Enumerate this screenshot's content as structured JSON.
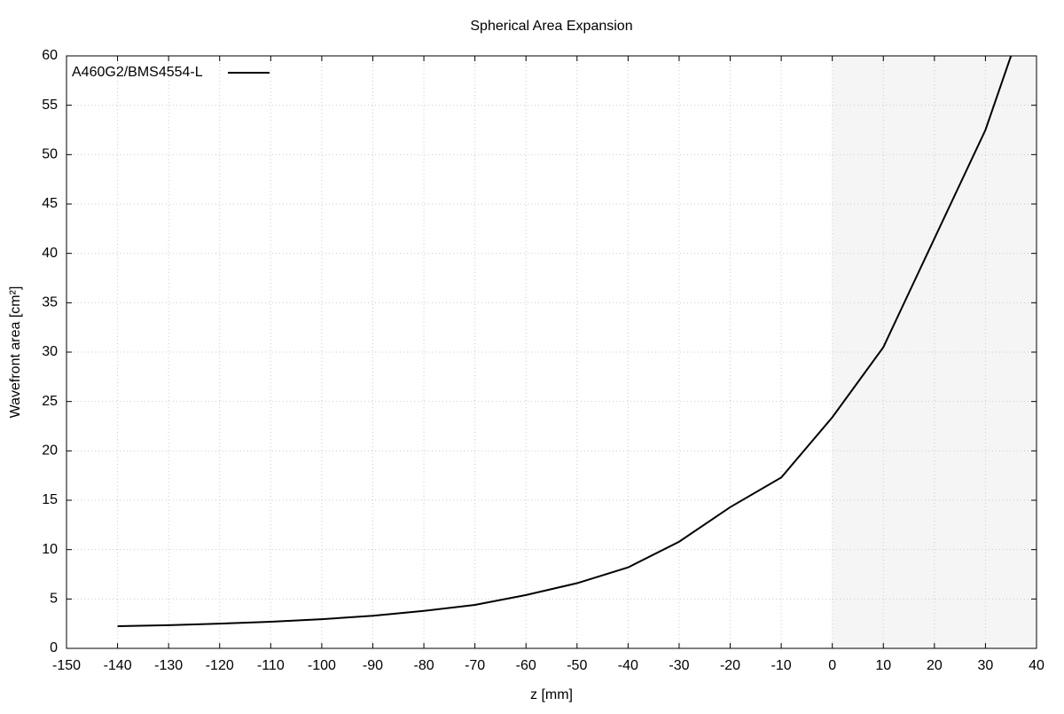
{
  "chart_data": {
    "type": "line",
    "title": "Spherical Area Expansion",
    "xlabel": "z [mm]",
    "ylabel": "Wavefront area [cm²]",
    "x": [
      -140,
      -130,
      -120,
      -110,
      -100,
      -90,
      -80,
      -70,
      -60,
      -50,
      -40,
      -30,
      -20,
      -10,
      0,
      10,
      20,
      30,
      35
    ],
    "series": [
      {
        "name": "A460G2/BMS4554-L",
        "color": "#000000",
        "values": [
          2.25,
          2.35,
          2.5,
          2.7,
          2.95,
          3.3,
          3.8,
          4.4,
          5.4,
          6.6,
          8.2,
          10.8,
          14.3,
          17.3,
          23.4,
          30.5,
          41.5,
          52.5,
          60
        ]
      }
    ],
    "xlim": [
      -150,
      40
    ],
    "ylim": [
      0,
      60
    ],
    "xticks": [
      -150,
      -140,
      -130,
      -120,
      -110,
      -100,
      -90,
      -80,
      -70,
      -60,
      -50,
      -40,
      -30,
      -20,
      -10,
      0,
      10,
      20,
      30,
      40
    ],
    "yticks": [
      0,
      5,
      10,
      15,
      20,
      25,
      30,
      35,
      40,
      45,
      50,
      55,
      60
    ],
    "shaded_x": [
      0,
      40
    ],
    "shade_color": "#f5f5f5",
    "grid": true,
    "legend": "upper-left"
  }
}
